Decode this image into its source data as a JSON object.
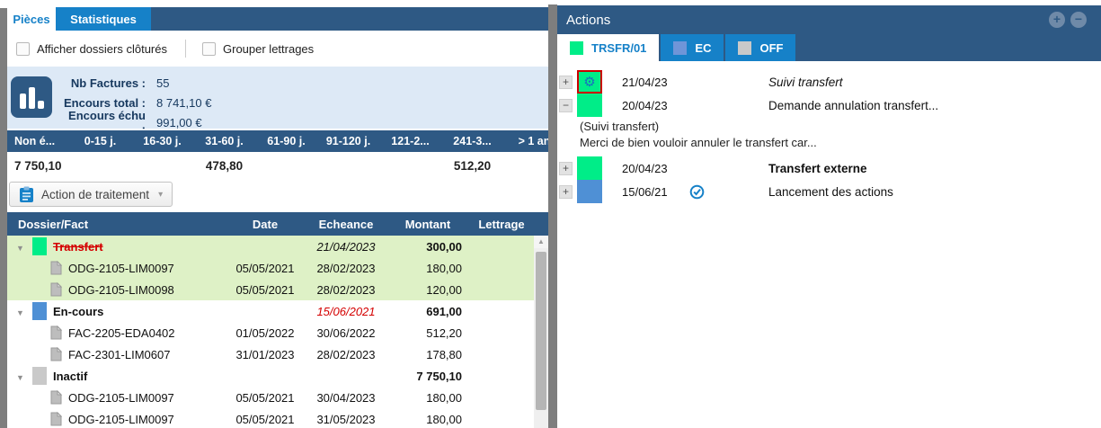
{
  "colors": {
    "navy": "#2e5984",
    "tab_blue": "#1681c8",
    "green": "#00ed88",
    "blue": "#4f90d5",
    "ec_blue": "#6f95d8",
    "gray": "#c9c9c9",
    "row_highlight": "#def1c6",
    "stats_bg": "#dde9f6",
    "red": "#d40000",
    "gear_blue": "#1a6ec0"
  },
  "left_panel": {
    "tabs": [
      {
        "label": "Pièces",
        "active": true
      },
      {
        "label": "Statistiques",
        "active": false
      }
    ],
    "checkboxes": [
      {
        "label": "Afficher dossiers clôturés",
        "checked": false
      },
      {
        "label": "Grouper lettrages",
        "checked": false
      }
    ],
    "stats": {
      "icon": "bar-chart-icon",
      "items": [
        {
          "label": "Nb Factures :",
          "value": "55"
        },
        {
          "label": "Encours total :",
          "value": "8 741,10 €"
        },
        {
          "label": "Encours échu :",
          "value": "991,00 €"
        }
      ]
    },
    "aging": {
      "columns": [
        "Non é...",
        "0-15 j.",
        "16-30 j.",
        "31-60 j.",
        "61-90 j.",
        "91-120 j.",
        "121-2...",
        "241-3...",
        "> 1 an"
      ],
      "values": [
        "7 750,10",
        "",
        "",
        "478,80",
        "",
        "",
        "",
        "512,20",
        ""
      ]
    },
    "action_button": {
      "label": "Action de traitement",
      "icon": "clipboard-icon",
      "caret": "▾"
    },
    "table": {
      "columns": [
        "Dossier/Fact",
        "Date",
        "Echeance",
        "Montant",
        "Lettrage"
      ],
      "rows": [
        {
          "type": "group",
          "color": "green",
          "label": "Transfert",
          "label_status": "cancelled",
          "date": "",
          "echeance": "21/04/2023",
          "echeance_style": "planned",
          "montant": "300,00",
          "lettrage": "",
          "highlight": true
        },
        {
          "type": "doc",
          "label": "ODG-2105-LIM0097",
          "date": "05/05/2021",
          "echeance": "28/02/2023",
          "montant": "180,00",
          "lettrage": "",
          "highlight": true
        },
        {
          "type": "doc",
          "label": "ODG-2105-LIM0098",
          "date": "05/05/2021",
          "echeance": "28/02/2023",
          "montant": "120,00",
          "lettrage": "",
          "highlight": true
        },
        {
          "type": "group",
          "color": "blue",
          "label": "En-cours",
          "date": "",
          "echeance": "15/06/2021",
          "echeance_style": "overdue",
          "montant": "691,00",
          "lettrage": "",
          "highlight": false
        },
        {
          "type": "doc",
          "label": "FAC-2205-EDA0402",
          "date": "01/05/2022",
          "echeance": "30/06/2022",
          "montant": "512,20",
          "lettrage": "",
          "highlight": false
        },
        {
          "type": "doc",
          "label": "FAC-2301-LIM0607",
          "date": "31/01/2023",
          "echeance": "28/02/2023",
          "montant": "178,80",
          "lettrage": "",
          "highlight": false
        },
        {
          "type": "group",
          "color": "gray",
          "label": "Inactif",
          "date": "",
          "echeance": "",
          "montant": "7 750,10",
          "lettrage": "",
          "highlight": false
        },
        {
          "type": "doc",
          "label": "ODG-2105-LIM0097",
          "date": "05/05/2021",
          "echeance": "30/04/2023",
          "montant": "180,00",
          "lettrage": "",
          "highlight": false
        },
        {
          "type": "doc",
          "label": "ODG-2105-LIM0097",
          "date": "05/05/2021",
          "echeance": "31/05/2023",
          "montant": "180,00",
          "lettrage": "",
          "highlight": false
        }
      ]
    }
  },
  "right_panel": {
    "title": "Actions",
    "header_buttons": [
      {
        "name": "add-action-button",
        "glyph": "+"
      },
      {
        "name": "remove-action-button",
        "glyph": "−"
      }
    ],
    "tabs": [
      {
        "label": "TRSFR/01",
        "icon_color": "green",
        "active": true
      },
      {
        "label": "EC",
        "icon_color": "ec_blue",
        "active": false
      },
      {
        "label": "OFF",
        "icon_color": "gray",
        "active": false
      }
    ],
    "actions": [
      {
        "expander": "+",
        "color": "green",
        "icon": "gear",
        "selected": true,
        "date": "21/04/23",
        "check": false,
        "text": "Suivi transfert",
        "text_style": "italic"
      },
      {
        "expander": "−",
        "color": "green",
        "selected": false,
        "date": "20/04/23",
        "check": false,
        "text": "Demande annulation transfert...",
        "text_style": "normal",
        "details": [
          "(Suivi transfert)",
          "Merci de bien vouloir annuler le transfert car..."
        ]
      },
      {
        "expander": "+",
        "color": "green",
        "selected": false,
        "date": "20/04/23",
        "check": false,
        "text": "Transfert externe",
        "text_style": "bold"
      },
      {
        "expander": "+",
        "color": "blue",
        "selected": false,
        "date": "15/06/21",
        "check": true,
        "text": "Lancement des actions",
        "text_style": "normal"
      }
    ]
  }
}
